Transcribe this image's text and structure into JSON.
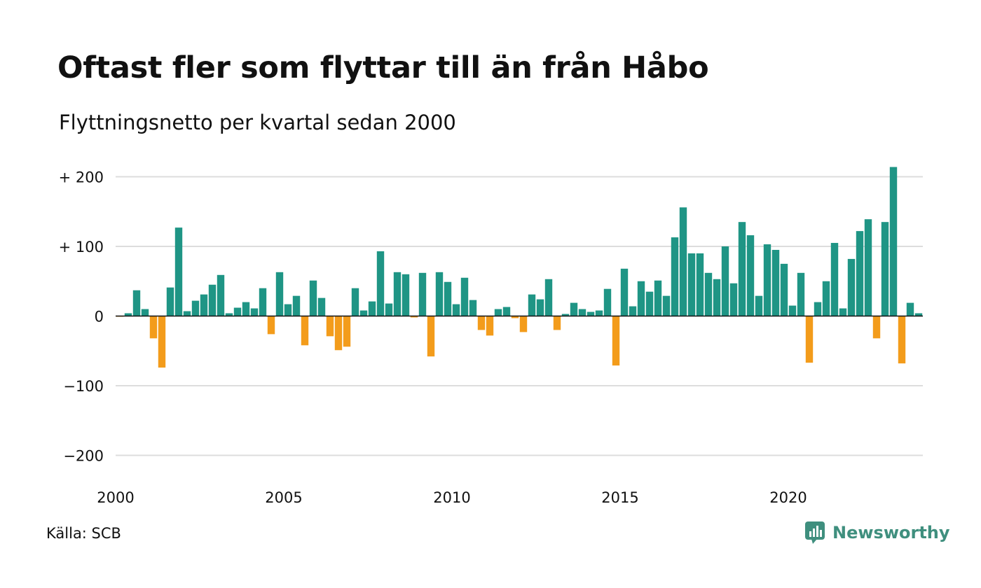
{
  "title": "Oftast fler som flyttar till än från Håbo",
  "subtitle": "Flyttningsnetto per kvartal sedan 2000",
  "source": "Källa: SCB",
  "brand": "Newsworthy",
  "colors": {
    "positive": "#1f9585",
    "negative": "#f39c1b",
    "grid": "#dddddd",
    "baseline": "#111111",
    "brand": "#3f8f7e"
  },
  "chart_data": {
    "type": "bar",
    "x_start_year": 2000,
    "periods_per_year": 4,
    "ylim": [
      -220,
      220
    ],
    "y_ticks": [
      200,
      100,
      0,
      -100,
      -200
    ],
    "y_tick_labels": [
      "+ 200",
      "+ 100",
      "0",
      "−100",
      "−200"
    ],
    "x_ticks": [
      2000,
      2005,
      2010,
      2015,
      2020
    ],
    "x_tick_labels": [
      "2000",
      "2005",
      "2010",
      "2015",
      "2020"
    ],
    "grid": true,
    "values": [
      -1,
      4,
      37,
      10,
      -32,
      -74,
      41,
      127,
      7,
      22,
      31,
      45,
      59,
      4,
      12,
      20,
      11,
      40,
      -26,
      63,
      17,
      29,
      -42,
      51,
      26,
      -29,
      -49,
      -44,
      40,
      8,
      21,
      93,
      18,
      63,
      60,
      -2,
      62,
      -58,
      63,
      49,
      17,
      55,
      23,
      -20,
      -28,
      10,
      13,
      -3,
      -23,
      31,
      24,
      53,
      -20,
      3,
      19,
      10,
      6,
      8,
      39,
      -71,
      68,
      14,
      50,
      35,
      51,
      29,
      113,
      156,
      90,
      90,
      62,
      53,
      100,
      47,
      135,
      116,
      29,
      103,
      95,
      75,
      15,
      62,
      -67,
      20,
      50,
      105,
      11,
      82,
      122,
      139,
      -32,
      135,
      214,
      -68,
      19,
      4
    ]
  }
}
